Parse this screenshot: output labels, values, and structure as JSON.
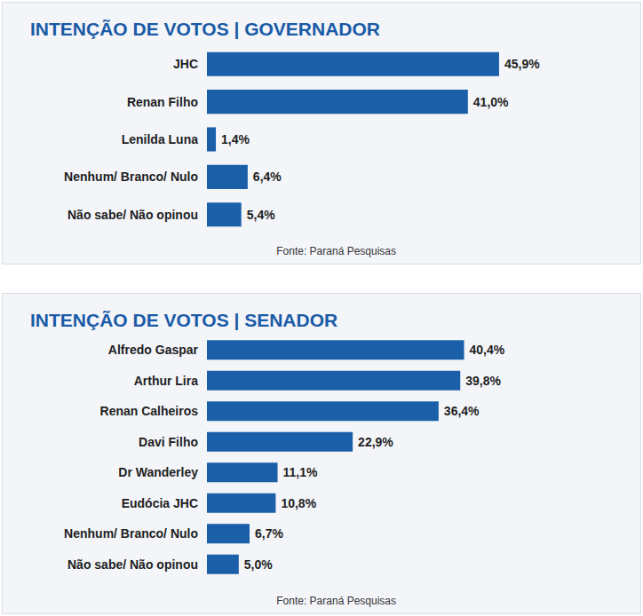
{
  "chart_data": [
    {
      "type": "bar",
      "title": "INTENÇÃO DE VOTOS | GOVERNADOR",
      "orientation": "horizontal",
      "categories": [
        "JHC",
        "Renan Filho",
        "Lenilda Luna",
        "Nenhum/ Branco/ Nulo",
        "Não sabe/ Não opinou"
      ],
      "values": [
        45.9,
        41.0,
        1.4,
        6.4,
        5.4
      ],
      "value_labels": [
        "45,9%",
        "41,0%",
        "1,4%",
        "6,4%",
        "5,4%"
      ],
      "color": "#1b5fa9",
      "xlim": [
        0,
        60
      ],
      "data_labels": true,
      "tick_labels": "y",
      "grid": false,
      "annotations": [
        "Fonte: Paraná Pesquisas"
      ]
    },
    {
      "type": "bar",
      "title": "INTENÇÃO DE VOTOS | SENADOR",
      "orientation": "horizontal",
      "categories": [
        "Alfredo Gaspar",
        "Arthur Lira",
        "Renan Calheiros",
        "Davi Filho",
        "Dr Wanderley",
        "Eudócia JHC",
        "Nenhum/ Branco/ Nulo",
        "Não sabe/ Não opinou"
      ],
      "values": [
        40.4,
        39.8,
        36.4,
        22.9,
        11.1,
        10.8,
        6.7,
        5.0
      ],
      "value_labels": [
        "40,4%",
        "39,8%",
        "36,4%",
        "22,9%",
        "11,1%",
        "10,8%",
        "6,7%",
        "5,0%"
      ],
      "color": "#1b5fa9",
      "xlim": [
        0,
        60
      ],
      "data_labels": true,
      "tick_labels": "y",
      "grid": false,
      "annotations": [
        "Fonte: Paraná Pesquisas"
      ]
    }
  ]
}
